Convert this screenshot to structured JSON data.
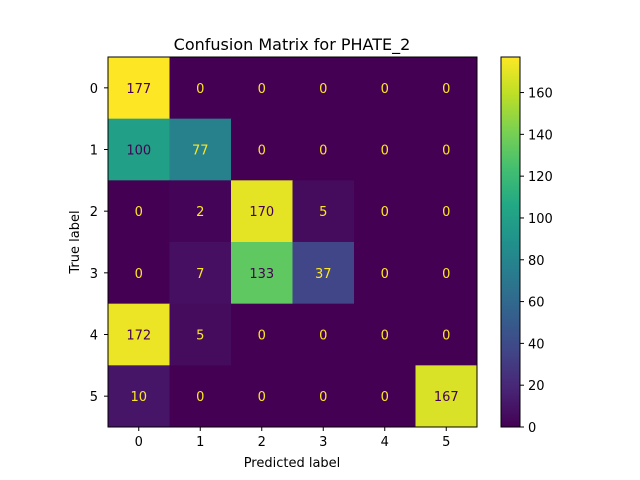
{
  "chart_data": {
    "type": "heatmap",
    "title": "Confusion Matrix for PHATE_2",
    "xlabel": "Predicted label",
    "ylabel": "True label",
    "x_categories": [
      "0",
      "1",
      "2",
      "3",
      "4",
      "5"
    ],
    "y_categories": [
      "0",
      "1",
      "2",
      "3",
      "4",
      "5"
    ],
    "values": [
      [
        177,
        0,
        0,
        0,
        0,
        0
      ],
      [
        100,
        77,
        0,
        0,
        0,
        0
      ],
      [
        0,
        2,
        170,
        5,
        0,
        0
      ],
      [
        0,
        7,
        133,
        37,
        0,
        0
      ],
      [
        172,
        5,
        0,
        0,
        0,
        0
      ],
      [
        10,
        0,
        0,
        0,
        0,
        167
      ]
    ],
    "colorscale": "viridis",
    "value_range": [
      0,
      177
    ],
    "colorbar_ticks": [
      "0",
      "20",
      "40",
      "60",
      "80",
      "100",
      "120",
      "140",
      "160"
    ],
    "label_color_dark_cell": "#fde725",
    "label_color_light_cell": "#440154"
  }
}
